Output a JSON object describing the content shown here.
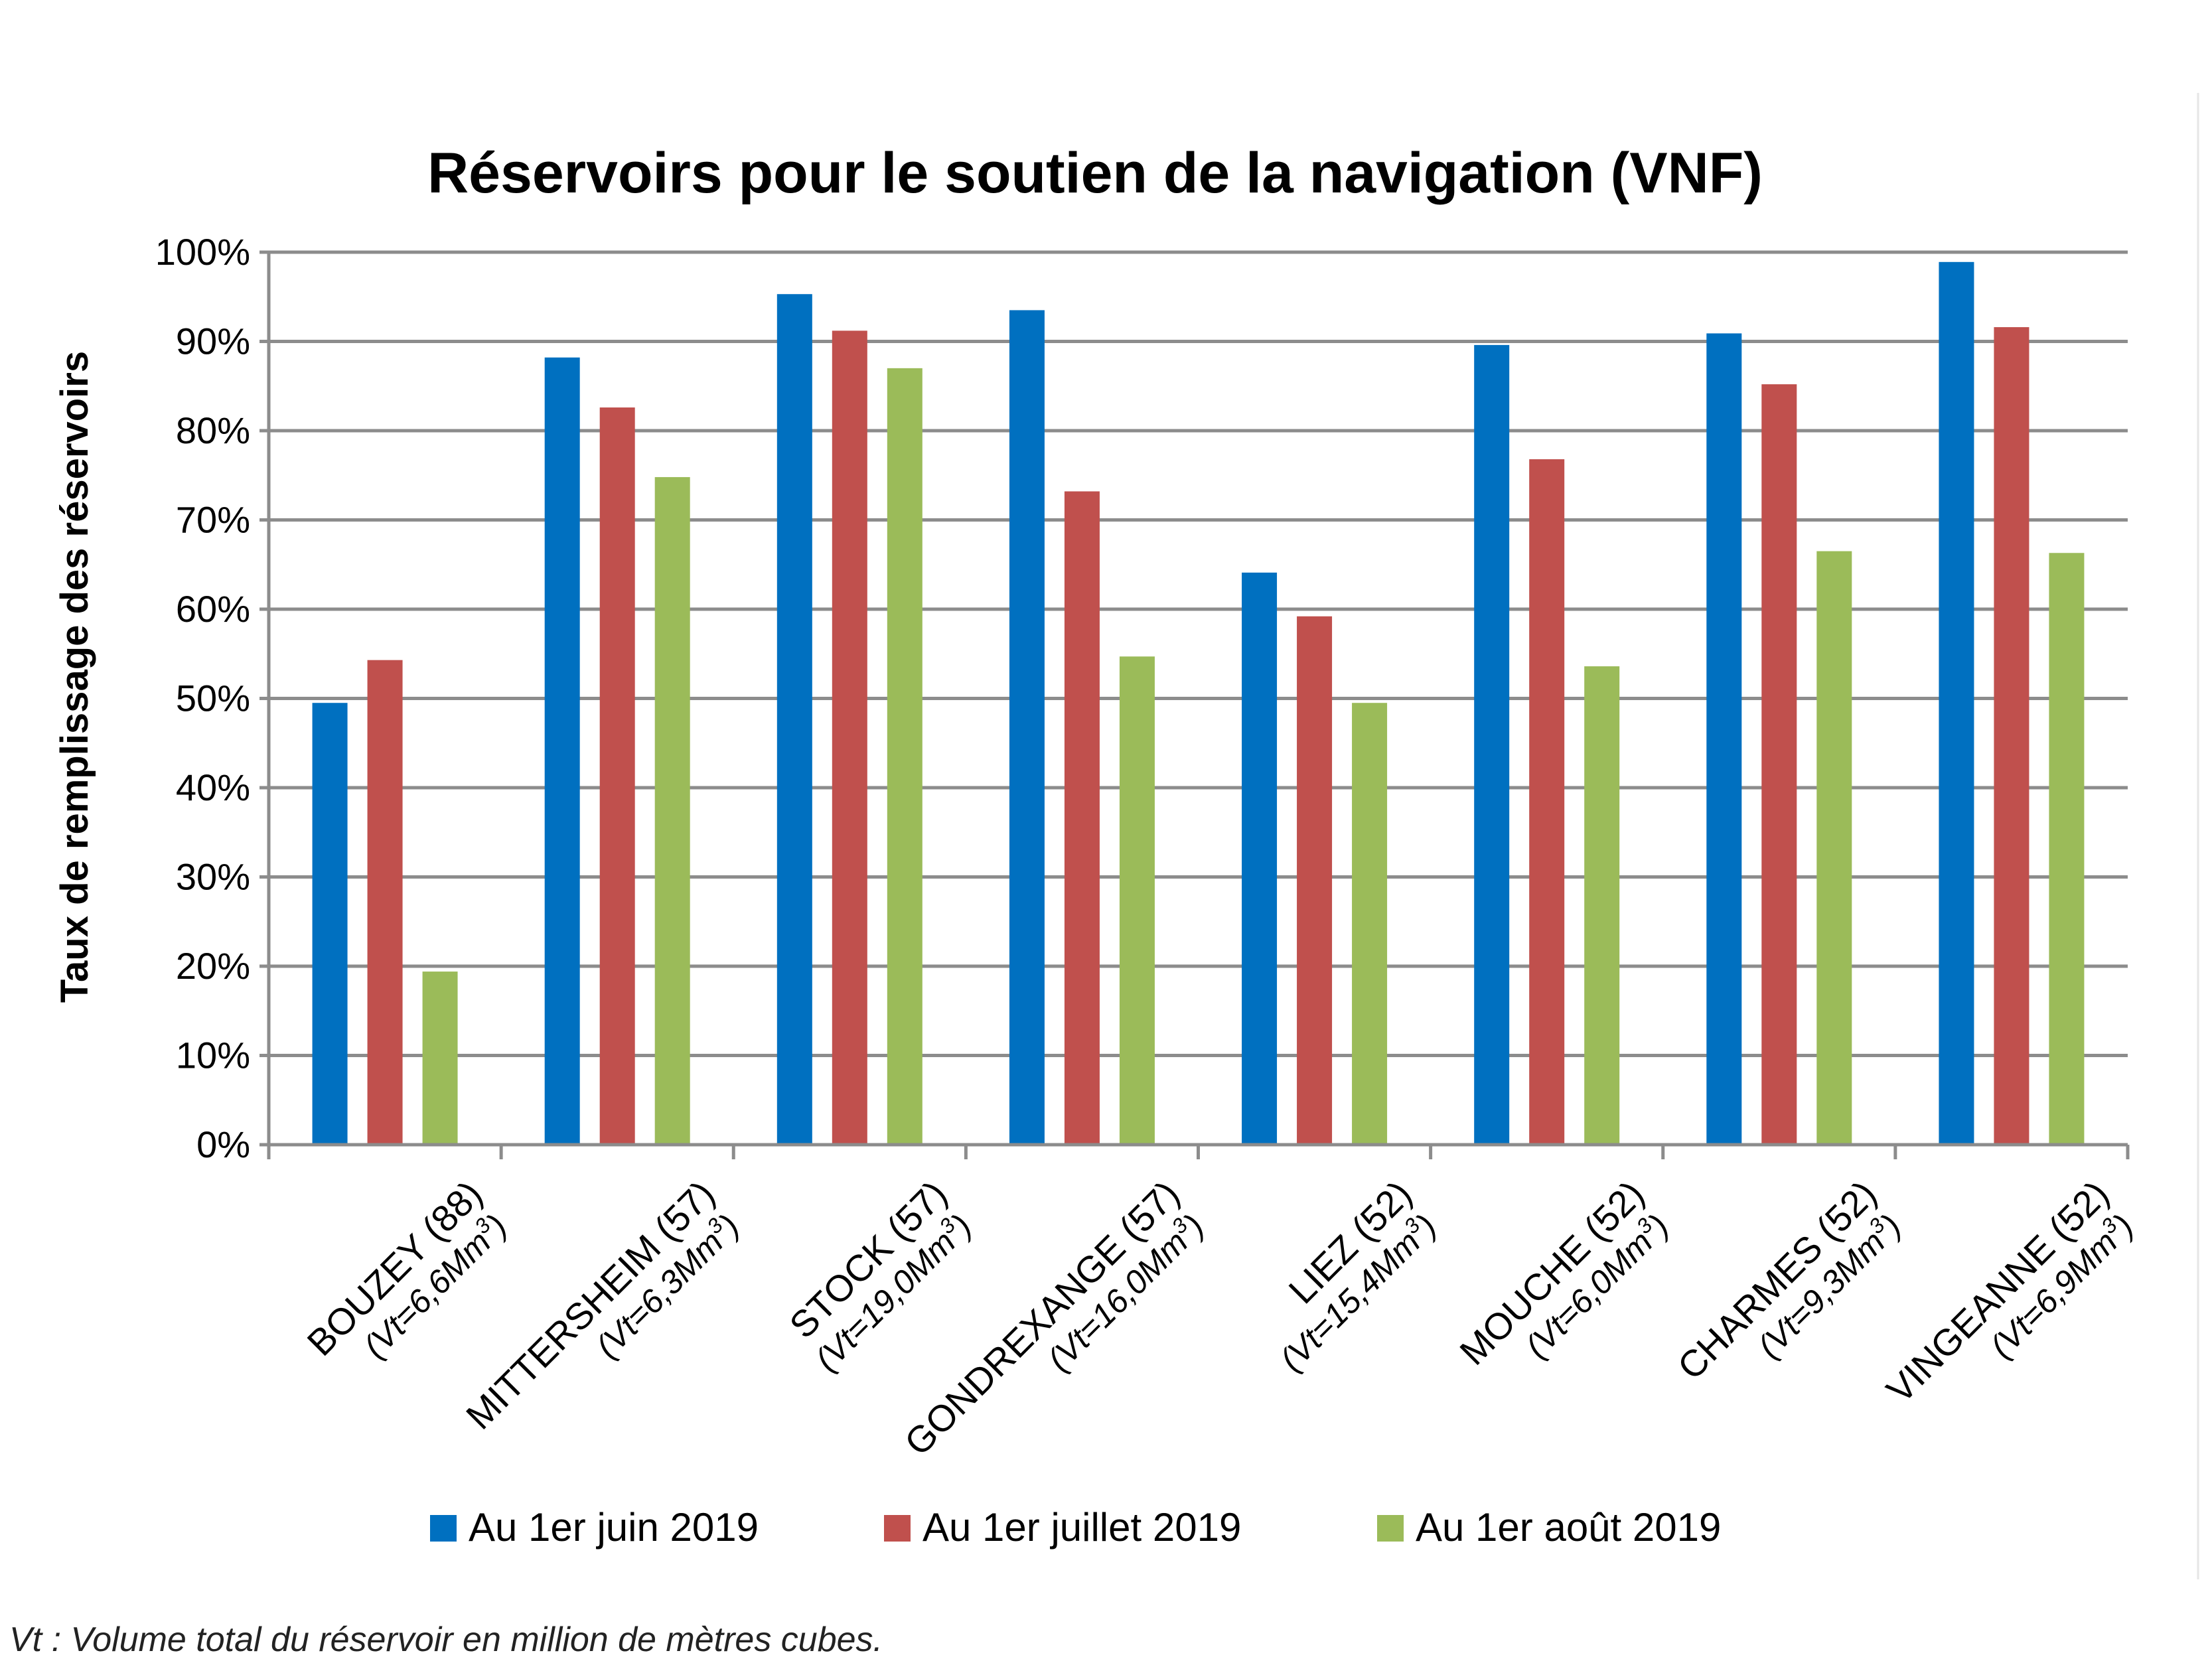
{
  "chart_data": {
    "type": "bar",
    "title": "Réservoirs pour le soutien de la navigation (VNF)",
    "ylabel": "Taux de remplissage des réservoirs",
    "xlabel": "",
    "ylim": [
      0,
      100
    ],
    "yticks": [
      "0%",
      "10%",
      "20%",
      "30%",
      "40%",
      "50%",
      "60%",
      "70%",
      "80%",
      "90%",
      "100%"
    ],
    "grid": true,
    "legend_position": "bottom",
    "categories": [
      {
        "name": "BOUZEY (88)",
        "sub": "(Vt=6,6Mm",
        "sup": "3",
        "close": ")"
      },
      {
        "name": "MITTERSHEIM (57)",
        "sub": "(Vt=6,3Mm",
        "sup": "3",
        "close": ")"
      },
      {
        "name": "STOCK (57)",
        "sub": "(Vt=19,0Mm",
        "sup": "3",
        "close": ")"
      },
      {
        "name": "GONDREXANGE (57)",
        "sub": "(Vt=16,0Mm",
        "sup": "3",
        "close": ")"
      },
      {
        "name": "LIEZ (52)",
        "sub": "(Vt=15,4Mm",
        "sup": "3",
        "close": ")"
      },
      {
        "name": "MOUCHE (52)",
        "sub": "(Vt=6,0Mm",
        "sup": "3",
        "close": ")"
      },
      {
        "name": "CHARMES (52)",
        "sub": "(Vt=9,3Mm",
        "sup": "3",
        "close": ")"
      },
      {
        "name": "VINGEANNE (52)",
        "sub": "(Vt=6,9Mm",
        "sup": "3",
        "close": ")"
      }
    ],
    "series": [
      {
        "name": "Au 1er juin 2019",
        "color": "#0070c0",
        "values": [
          49.5,
          88.2,
          95.3,
          93.5,
          64.1,
          89.6,
          90.9,
          98.9
        ]
      },
      {
        "name": "Au 1er juillet 2019",
        "color": "#c0504d",
        "values": [
          54.3,
          82.6,
          91.2,
          73.2,
          59.2,
          76.8,
          85.2,
          91.6
        ]
      },
      {
        "name": "Au 1er août 2019",
        "color": "#9bbb59",
        "values": [
          19.4,
          74.8,
          87.0,
          54.7,
          49.5,
          53.6,
          66.5,
          66.3
        ]
      }
    ]
  },
  "footnote": "Vt : Volume total du réservoir en million de mètres cubes."
}
